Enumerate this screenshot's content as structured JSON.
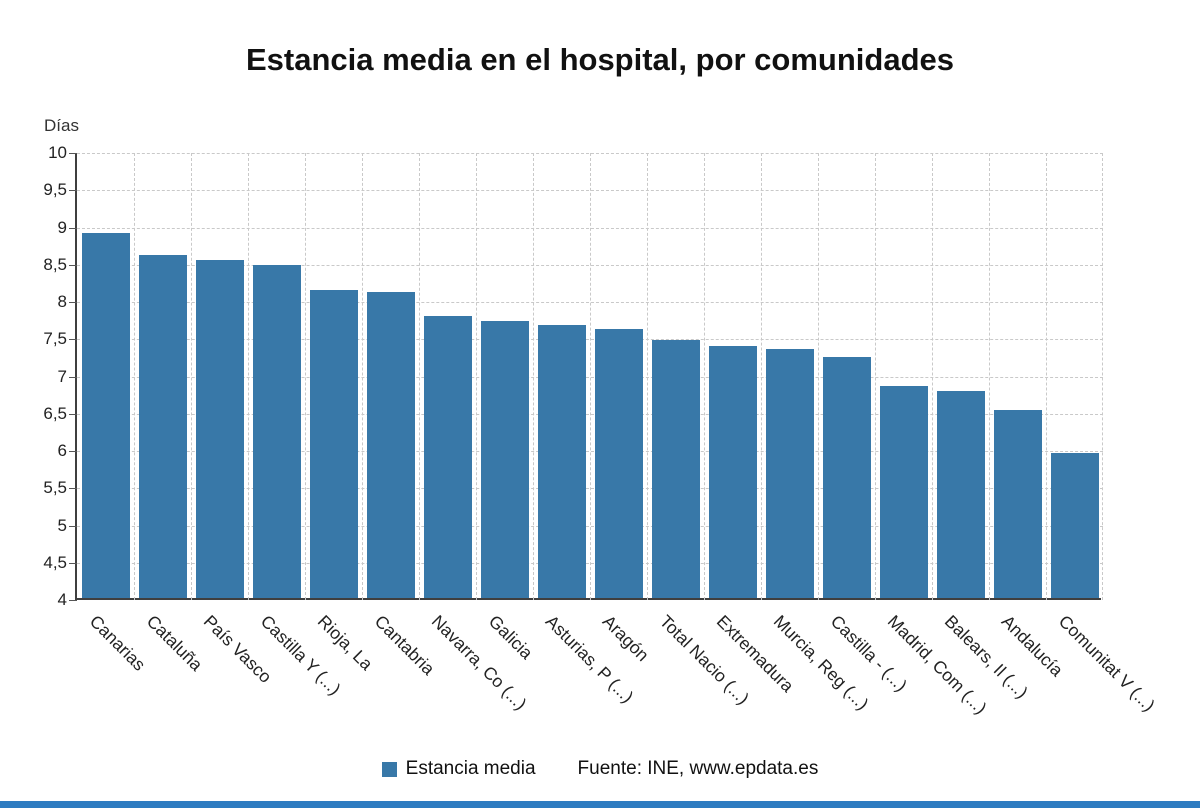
{
  "title": "Estancia media en el hospital, por comunidades",
  "y_axis_label": "Días",
  "legend": {
    "label": "Estancia media",
    "color": "#3878a8"
  },
  "source": "Fuente: INE, www.epdata.es",
  "accent_bar_color": "#2d7cc1",
  "chart_data": {
    "type": "bar",
    "title": "Estancia media en el hospital, por comunidades",
    "ylabel": "Días",
    "xlabel": "",
    "legend_entries": [
      "Estancia media"
    ],
    "legend_position": "bottom",
    "grid": "dashed",
    "bar_color": "#3878a8",
    "ylim": [
      4,
      10
    ],
    "ytick_step": 0.5,
    "ytick_labels": [
      "4",
      "4,5",
      "5",
      "5,5",
      "6",
      "6,5",
      "7",
      "7,5",
      "8",
      "8,5",
      "9",
      "9,5",
      "10"
    ],
    "categories": [
      "Canarias",
      "Cataluña",
      "País Vasco",
      "Castilla Y (...)",
      "Rioja, La",
      "Cantabria",
      "Navarra, Co (...)",
      "Galicia",
      "Asturias, P (...)",
      "Aragón",
      "Total Nacio (...)",
      "Extremadura",
      "Murcia, Reg (...)",
      "Castilla - (...)",
      "Madrid, Com (...)",
      "Balears, Il (...)",
      "Andalucía",
      "Comunitat V (...)"
    ],
    "values": [
      8.9,
      8.6,
      8.54,
      8.47,
      8.14,
      8.11,
      7.78,
      7.72,
      7.66,
      7.61,
      7.46,
      7.38,
      7.34,
      7.23,
      6.84,
      6.78,
      6.52,
      5.94
    ]
  }
}
